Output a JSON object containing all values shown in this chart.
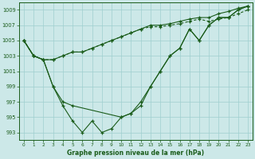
{
  "xlabel": "Graphe pression niveau de la mer (hPa)",
  "bg_color": "#cce8e8",
  "grid_color": "#9fcfcf",
  "line_color": "#1a5c1a",
  "ylim": [
    992.0,
    1010.0
  ],
  "xlim": [
    -0.5,
    23.5
  ],
  "yticks": [
    993,
    995,
    997,
    999,
    1001,
    1003,
    1005,
    1007,
    1009
  ],
  "xticks": [
    0,
    1,
    2,
    3,
    4,
    5,
    6,
    7,
    8,
    9,
    10,
    11,
    12,
    13,
    14,
    15,
    16,
    17,
    18,
    19,
    20,
    21,
    22,
    23
  ],
  "line1": [
    1005,
    1003,
    1002.5,
    1002.5,
    1003,
    1003.5,
    1003.5,
    1004,
    1004.5,
    1005,
    1005.5,
    1006,
    1006.5,
    1007,
    1007,
    1007.2,
    1007.5,
    1007.8,
    1008,
    1008,
    1008.5,
    1008.8,
    1009.2,
    1009.5
  ],
  "line2": [
    1005,
    1003,
    1002.5,
    1002.5,
    1003,
    1003.5,
    1003.5,
    1004,
    1004.5,
    1005,
    1005.5,
    1006,
    1006.5,
    1006.8,
    1006.8,
    1007,
    1007.2,
    1007.5,
    1007.8,
    1007.5,
    1007.8,
    1008,
    1008.5,
    1009
  ],
  "line3_x": [
    0,
    1,
    2,
    3,
    4,
    5,
    10,
    11,
    12,
    13,
    14,
    15,
    16,
    17,
    18,
    19,
    20,
    21,
    22,
    23
  ],
  "line3_y": [
    1005,
    1003,
    1002.5,
    999,
    997,
    996.5,
    995,
    995.5,
    997,
    999,
    1001,
    1003,
    1004,
    1006.5,
    1005,
    1007,
    1008,
    1008,
    1009,
    1009.5
  ],
  "line4_x": [
    0,
    1,
    2,
    3,
    4,
    5,
    6,
    7,
    8,
    9,
    10,
    11,
    12,
    13,
    14,
    15,
    16,
    17,
    18,
    19,
    20,
    21,
    22,
    23
  ],
  "line4_y": [
    1005,
    1003,
    1002.5,
    999,
    996.5,
    994.5,
    993,
    994.5,
    993,
    993.5,
    995,
    995.5,
    996.5,
    999,
    1001,
    1003,
    1004,
    1006.5,
    1005,
    1007,
    1008,
    1008,
    1009,
    1009.5
  ]
}
